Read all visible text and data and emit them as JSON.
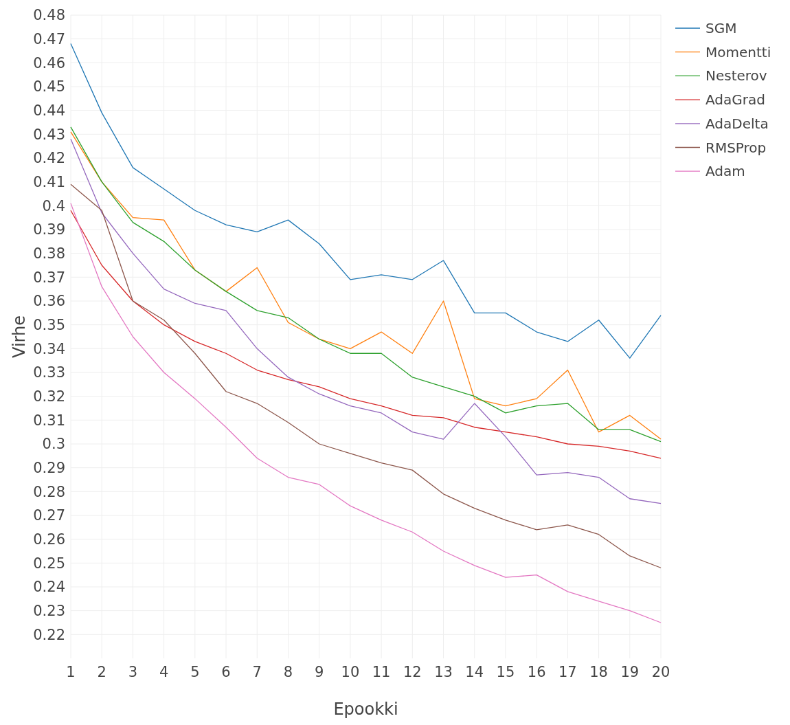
{
  "chart_data": {
    "type": "line",
    "xlabel": "Epookki",
    "ylabel": "Virhe",
    "x": [
      1,
      2,
      3,
      4,
      5,
      6,
      7,
      8,
      9,
      10,
      11,
      12,
      13,
      14,
      15,
      16,
      17,
      18,
      19,
      20
    ],
    "xlim": [
      1,
      20
    ],
    "xticks": [
      1,
      2,
      3,
      4,
      5,
      6,
      7,
      8,
      9,
      10,
      11,
      12,
      13,
      14,
      15,
      16,
      17,
      18,
      19,
      20
    ],
    "ylim": [
      0.21,
      0.48
    ],
    "yticks": [
      0.22,
      0.23,
      0.24,
      0.25,
      0.26,
      0.27,
      0.28,
      0.29,
      0.3,
      0.31,
      0.32,
      0.33,
      0.34,
      0.35,
      0.36,
      0.37,
      0.38,
      0.39,
      0.4,
      0.41,
      0.42,
      0.43,
      0.44,
      0.45,
      0.46,
      0.47,
      0.48
    ],
    "grid": true,
    "legend": "top right",
    "marker": "none",
    "line_style": "solid",
    "series": [
      {
        "name": "SGM",
        "color": "#1f77b4",
        "values": [
          0.468,
          0.439,
          0.416,
          0.407,
          0.398,
          0.392,
          0.389,
          0.394,
          0.384,
          0.369,
          0.371,
          0.369,
          0.377,
          0.355,
          0.355,
          0.347,
          0.343,
          0.352,
          0.336,
          0.354
        ]
      },
      {
        "name": "Momentti",
        "color": "#ff7f0e",
        "values": [
          0.431,
          0.41,
          0.395,
          0.394,
          0.373,
          0.364,
          0.374,
          0.351,
          0.344,
          0.34,
          0.347,
          0.338,
          0.36,
          0.319,
          0.316,
          0.319,
          0.331,
          0.305,
          0.312,
          0.302
        ]
      },
      {
        "name": "Nesterov",
        "color": "#2ca02c",
        "values": [
          0.433,
          0.41,
          0.393,
          0.385,
          0.373,
          0.364,
          0.356,
          0.353,
          0.344,
          0.338,
          0.338,
          0.328,
          0.324,
          0.32,
          0.313,
          0.316,
          0.317,
          0.306,
          0.306,
          0.301
        ]
      },
      {
        "name": "AdaGrad",
        "color": "#d62728",
        "values": [
          0.398,
          0.375,
          0.36,
          0.35,
          0.343,
          0.338,
          0.331,
          0.327,
          0.324,
          0.319,
          0.316,
          0.312,
          0.311,
          0.307,
          0.305,
          0.303,
          0.3,
          0.299,
          0.297,
          0.294
        ]
      },
      {
        "name": "AdaDelta",
        "color": "#9467bd",
        "values": [
          0.428,
          0.397,
          0.38,
          0.365,
          0.359,
          0.356,
          0.34,
          0.328,
          0.321,
          0.316,
          0.313,
          0.305,
          0.302,
          0.317,
          0.303,
          0.287,
          0.288,
          0.286,
          0.277,
          0.275
        ]
      },
      {
        "name": "RMSProp",
        "color": "#8c564b",
        "values": [
          0.409,
          0.398,
          0.36,
          0.352,
          0.338,
          0.322,
          0.317,
          0.309,
          0.3,
          0.296,
          0.292,
          0.289,
          0.279,
          0.273,
          0.268,
          0.264,
          0.266,
          0.262,
          0.253,
          0.248
        ]
      },
      {
        "name": "Adam",
        "color": "#e377c2",
        "values": [
          0.401,
          0.366,
          0.345,
          0.33,
          0.319,
          0.307,
          0.294,
          0.286,
          0.283,
          0.274,
          0.268,
          0.263,
          0.255,
          0.249,
          0.244,
          0.245,
          0.238,
          0.234,
          0.23,
          0.225
        ]
      }
    ]
  }
}
